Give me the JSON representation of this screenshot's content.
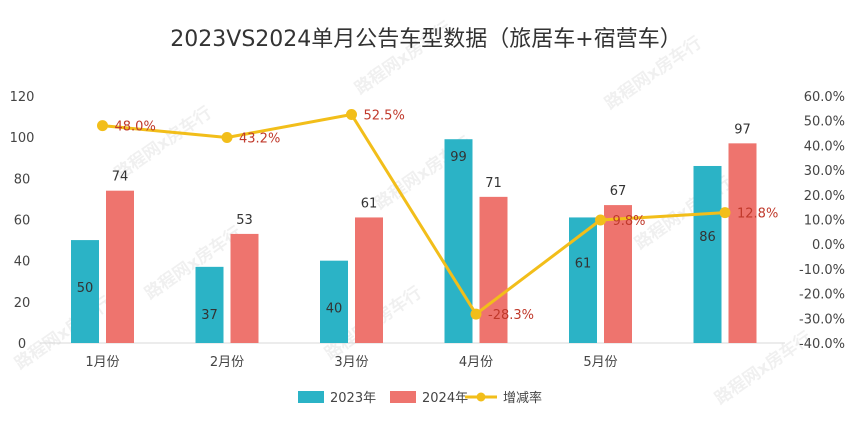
{
  "chart_data": {
    "type": "bar",
    "title": "2023VS2024单月公告车型数据（旅居车+宿营车）",
    "categories": [
      "1月份",
      "2月份",
      "3月份",
      "4月份",
      "5月份",
      ""
    ],
    "series": [
      {
        "name": "2023年",
        "type": "bar",
        "axis": "left",
        "color": "#2BB3C6",
        "values": [
          50,
          37,
          40,
          99,
          61,
          86
        ]
      },
      {
        "name": "2024年",
        "type": "bar",
        "axis": "left",
        "color": "#EE746E",
        "values": [
          74,
          53,
          61,
          71,
          67,
          97
        ]
      },
      {
        "name": "增减率",
        "type": "line",
        "axis": "right",
        "color": "#F2BE1A",
        "values": [
          48.0,
          43.2,
          52.5,
          -28.3,
          9.8,
          12.8
        ],
        "labels": [
          "48.0%",
          "43.2%",
          "52.5%",
          "-28.3%",
          "9.8%",
          "12.8%"
        ]
      }
    ],
    "y_left": {
      "min": 0,
      "max": 120,
      "step": 20,
      "ticks": [
        "0",
        "20",
        "40",
        "60",
        "80",
        "100",
        "120"
      ]
    },
    "y_right": {
      "min": -40,
      "max": 60,
      "step": 10,
      "ticks": [
        "-40.0%",
        "-30.0%",
        "-20.0%",
        "-10.0%",
        "0.0%",
        "10.0%",
        "20.0%",
        "30.0%",
        "40.0%",
        "50.0%",
        "60.0%"
      ]
    },
    "legend_position": "bottom",
    "grid": false,
    "label_color": "#C0392B",
    "watermark": "路程网x房车行"
  }
}
